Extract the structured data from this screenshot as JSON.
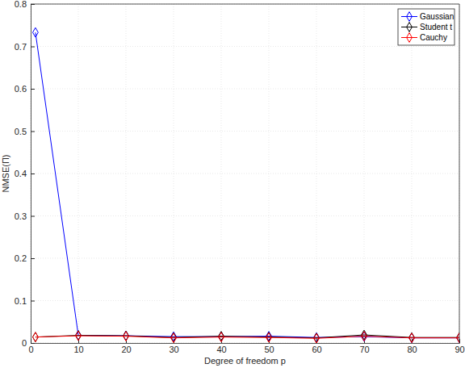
{
  "chart_data": {
    "type": "line",
    "x_label": "Degree of freedom p",
    "y_label": "NMSE(Π)",
    "x": [
      1,
      10,
      20,
      30,
      40,
      50,
      60,
      70,
      80,
      90
    ],
    "series": [
      {
        "name": "Gaussian",
        "color": "#0000ff",
        "marker": "diamond",
        "values": [
          0.733,
          0.018,
          0.017,
          0.015,
          0.015,
          0.016,
          0.013,
          0.015,
          0.012,
          0.012
        ]
      },
      {
        "name": "Student t",
        "color": "#000000",
        "marker": "diamond",
        "values": [
          0.014,
          0.018,
          0.017,
          0.013,
          0.016,
          0.014,
          0.012,
          0.019,
          0.013,
          0.013
        ]
      },
      {
        "name": "Cauchy",
        "color": "#ff0000",
        "marker": "diamond",
        "values": [
          0.014,
          0.017,
          0.016,
          0.012,
          0.014,
          0.013,
          0.011,
          0.016,
          0.012,
          0.012
        ]
      }
    ],
    "xlim": [
      0,
      90
    ],
    "ylim": [
      0,
      0.8
    ],
    "xticks": [
      0,
      10,
      20,
      30,
      40,
      50,
      60,
      70,
      80,
      90
    ],
    "yticks": [
      0,
      0.1,
      0.2,
      0.3,
      0.4,
      0.5,
      0.6,
      0.7,
      0.8
    ],
    "grid": true,
    "legend": "northeast"
  }
}
